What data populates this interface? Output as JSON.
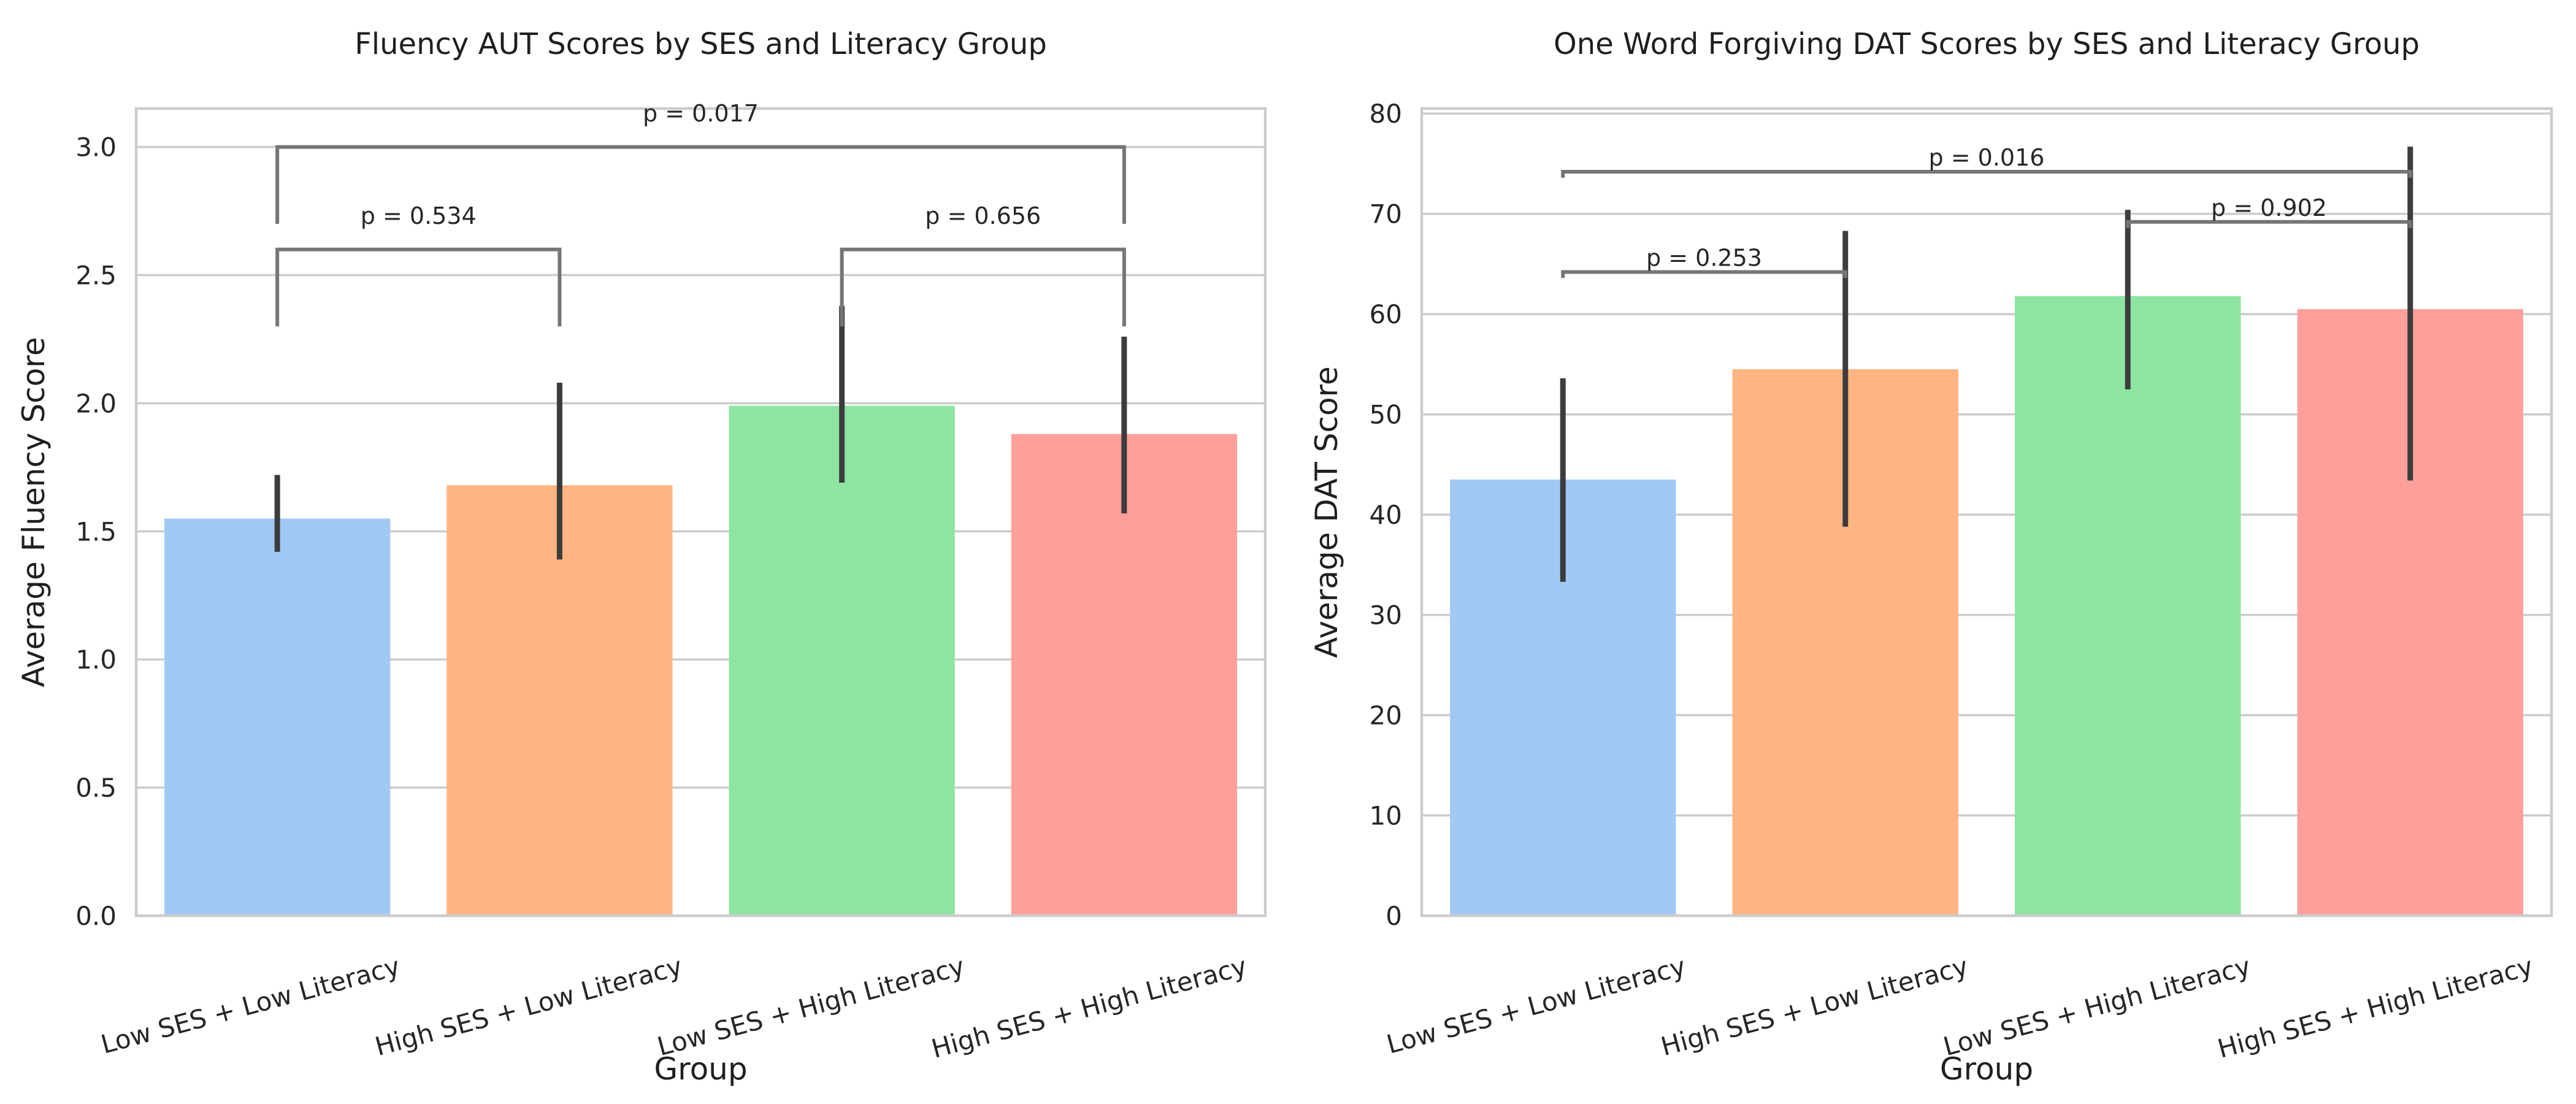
{
  "chart_data": [
    {
      "type": "bar",
      "title": "Fluency AUT Scores by SES and Literacy Group",
      "xlabel": "Group",
      "ylabel": "Average Fluency Score",
      "ylim": [
        0,
        3.15
      ],
      "yticks": [
        0.0,
        0.5,
        1.0,
        1.5,
        2.0,
        2.5,
        3.0
      ],
      "ytick_labels": [
        "0.0",
        "0.5",
        "1.0",
        "1.5",
        "2.0",
        "2.5",
        "3.0"
      ],
      "grid": true,
      "categories": [
        "Low SES + Low Literacy",
        "High SES + Low Literacy",
        "Low SES + High Literacy",
        "High SES + High Literacy"
      ],
      "values": [
        1.55,
        1.68,
        1.99,
        1.88
      ],
      "error_bars": [
        [
          1.42,
          1.72
        ],
        [
          1.39,
          2.08
        ],
        [
          1.69,
          2.38
        ],
        [
          1.57,
          2.26
        ]
      ],
      "colors": [
        "#a1c9f4",
        "#ffb482",
        "#8de5a1",
        "#ff9f9b"
      ],
      "annotations": [
        {
          "label": "p = 0.534",
          "from": 0,
          "to": 1,
          "y": 2.6,
          "drop": 2.3,
          "text_y": 2.7
        },
        {
          "label": "p = 0.656",
          "from": 2,
          "to": 3,
          "y": 2.6,
          "drop": 2.3,
          "text_y": 2.7
        },
        {
          "label": "p = 0.017",
          "from": 0,
          "to": 3,
          "y": 3.0,
          "drop": 2.7,
          "text_y": 3.1
        }
      ]
    },
    {
      "type": "bar",
      "title": "One Word Forgiving DAT Scores by SES and Literacy Group",
      "xlabel": "Group",
      "ylabel": "Average DAT Score",
      "ylim": [
        0,
        80.5
      ],
      "yticks": [
        0,
        10,
        20,
        30,
        40,
        50,
        60,
        70,
        80
      ],
      "ytick_labels": [
        "0",
        "10",
        "20",
        "30",
        "40",
        "50",
        "60",
        "70",
        "80"
      ],
      "grid": true,
      "categories": [
        "Low SES + Low Literacy",
        "High SES + Low Literacy",
        "Low SES + High Literacy",
        "High SES + High Literacy"
      ],
      "values": [
        43.5,
        54.5,
        61.8,
        60.5
      ],
      "error_bars": [
        [
          33.3,
          53.6
        ],
        [
          38.8,
          68.3
        ],
        [
          52.5,
          70.4
        ],
        [
          43.4,
          76.7
        ]
      ],
      "colors": [
        "#a1c9f4",
        "#ffb482",
        "#8de5a1",
        "#ff9f9b"
      ],
      "annotations": [
        {
          "label": "p = 0.253",
          "from": 0,
          "to": 1,
          "y": 64.2,
          "drop": 63.6,
          "text_y": 64.8
        },
        {
          "label": "p = 0.902",
          "from": 2,
          "to": 3,
          "y": 69.2,
          "drop": 68.6,
          "text_y": 69.8
        },
        {
          "label": "p = 0.016",
          "from": 0,
          "to": 3,
          "y": 74.2,
          "drop": 73.6,
          "text_y": 74.8
        }
      ]
    }
  ]
}
